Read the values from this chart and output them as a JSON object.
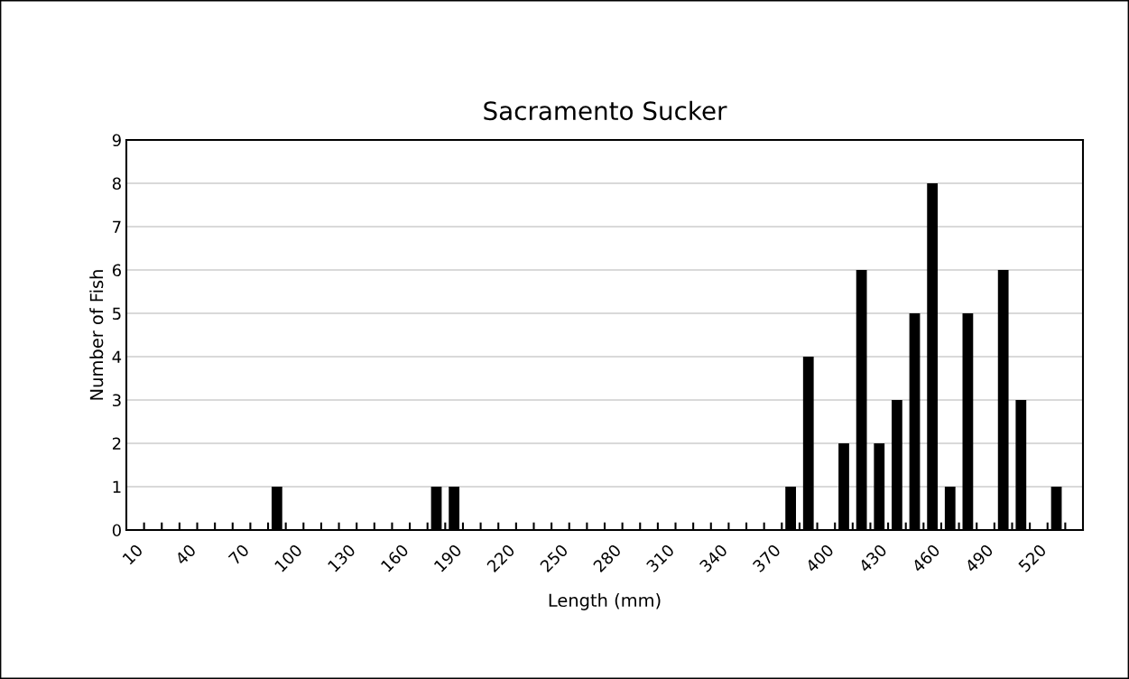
{
  "chart_data": {
    "type": "bar",
    "title": "Sacramento Sucker",
    "xlabel": "Length (mm)",
    "ylabel": "Number of Fish",
    "categories": [
      "10",
      null,
      null,
      "40",
      null,
      null,
      "70",
      null,
      null,
      "100",
      null,
      null,
      "130",
      null,
      null,
      "160",
      null,
      null,
      "190",
      null,
      null,
      "220",
      null,
      null,
      "250",
      null,
      null,
      "280",
      null,
      null,
      "310",
      null,
      null,
      "340",
      null,
      null,
      "370",
      null,
      null,
      "400",
      null,
      null,
      "430",
      null,
      null,
      "460",
      null,
      null,
      "490",
      null,
      null,
      "520",
      null,
      null
    ],
    "values": [
      0,
      0,
      0,
      0,
      0,
      0,
      0,
      0,
      1,
      0,
      0,
      0,
      0,
      0,
      0,
      0,
      0,
      1,
      1,
      0,
      0,
      0,
      0,
      0,
      0,
      0,
      0,
      0,
      0,
      0,
      0,
      0,
      0,
      0,
      0,
      0,
      0,
      1,
      4,
      0,
      2,
      6,
      2,
      3,
      5,
      8,
      1,
      5,
      0,
      6,
      3,
      0,
      1,
      0
    ],
    "color": "#000000",
    "ylim": [
      0,
      9
    ],
    "yticks": [
      0,
      1,
      2,
      3,
      4,
      5,
      6,
      7,
      8,
      9
    ],
    "grid": "y"
  }
}
